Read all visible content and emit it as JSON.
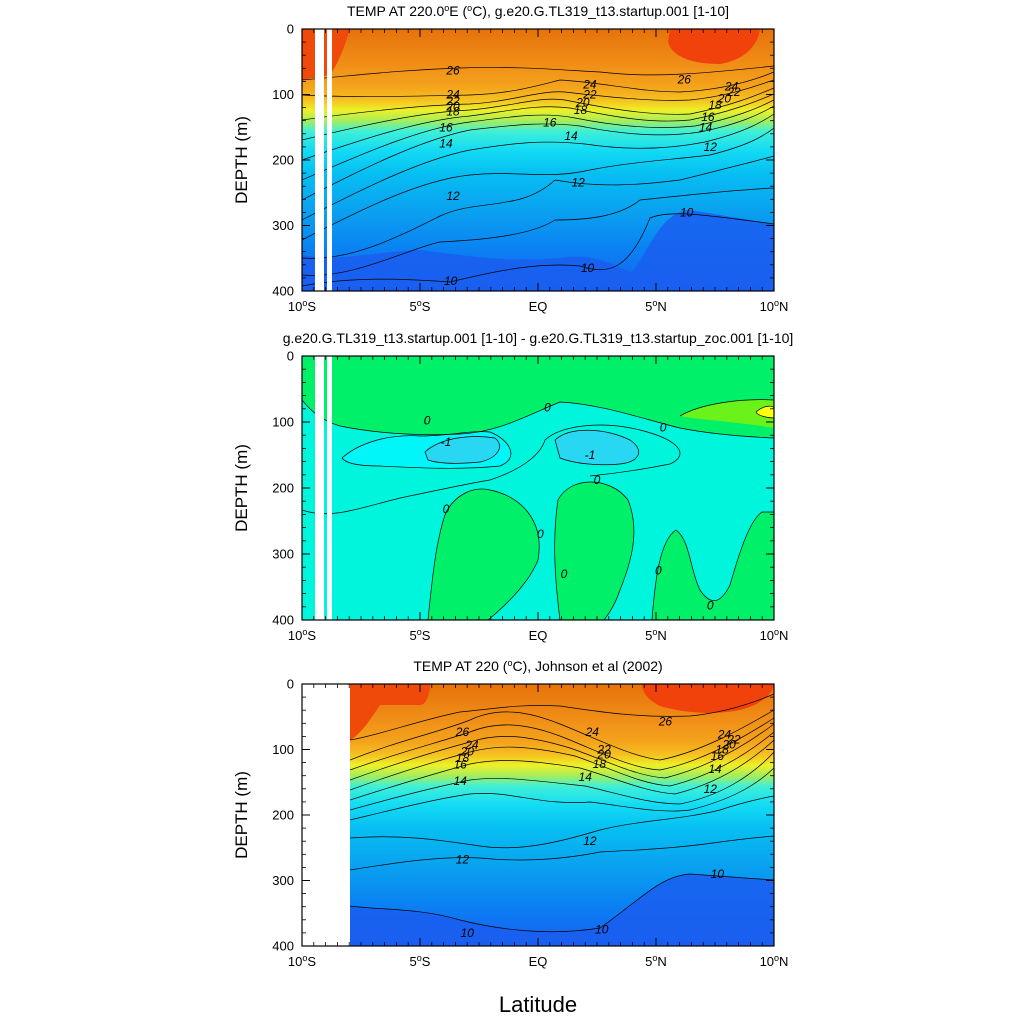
{
  "chart_data": [
    {
      "type": "contour",
      "title": "TEMP AT 220.0°E (°C), g.e20.G.TL319_t13.startup.001 [1-10]",
      "title_parts": {
        "pre": "TEMP AT 220.0",
        "sup1": "o",
        "mid": "E (",
        "sup2": "o",
        "post": "C), g.e20.G.TL319_t13.startup.001 [1-10]"
      },
      "ylabel": "DEPTH (m)",
      "xlabel": "",
      "xlim": [
        -10,
        10
      ],
      "ylim": [
        400,
        0
      ],
      "yticks": [
        0,
        100,
        200,
        300,
        400
      ],
      "xtick_values": [
        -10,
        -5,
        0,
        5,
        10
      ],
      "xtick_labels": [
        {
          "n": "10",
          "d": "S"
        },
        {
          "n": "5",
          "d": "S"
        },
        {
          "n": "EQ",
          "d": ""
        },
        {
          "n": "5",
          "d": "N"
        },
        {
          "n": "10",
          "d": "N"
        }
      ],
      "levels": [
        10,
        12,
        14,
        16,
        18,
        20,
        22,
        24,
        26
      ],
      "contour_labels": [
        {
          "text": "26",
          "lat": -3.6,
          "depth": 63
        },
        {
          "text": "24",
          "lat": -3.6,
          "depth": 100
        },
        {
          "text": "22",
          "lat": -3.6,
          "depth": 110
        },
        {
          "text": "20",
          "lat": -3.6,
          "depth": 118
        },
        {
          "text": "18",
          "lat": -3.6,
          "depth": 126
        },
        {
          "text": "16",
          "lat": -3.9,
          "depth": 150
        },
        {
          "text": "14",
          "lat": -3.9,
          "depth": 175
        },
        {
          "text": "12",
          "lat": -3.6,
          "depth": 255
        },
        {
          "text": "10",
          "lat": -3.7,
          "depth": 385
        },
        {
          "text": "24",
          "lat": 2.2,
          "depth": 85
        },
        {
          "text": "22",
          "lat": 2.2,
          "depth": 100
        },
        {
          "text": "20",
          "lat": 1.9,
          "depth": 112
        },
        {
          "text": "18",
          "lat": 1.8,
          "depth": 124
        },
        {
          "text": "16",
          "lat": 0.5,
          "depth": 143
        },
        {
          "text": "14",
          "lat": 1.4,
          "depth": 163
        },
        {
          "text": "12",
          "lat": 1.7,
          "depth": 234
        },
        {
          "text": "10",
          "lat": 2.1,
          "depth": 365
        },
        {
          "text": "26",
          "lat": 6.2,
          "depth": 77
        },
        {
          "text": "24",
          "lat": 8.2,
          "depth": 88
        },
        {
          "text": "22",
          "lat": 8.3,
          "depth": 96
        },
        {
          "text": "20",
          "lat": 7.9,
          "depth": 106
        },
        {
          "text": "18",
          "lat": 7.5,
          "depth": 116
        },
        {
          "text": "16",
          "lat": 7.2,
          "depth": 134
        },
        {
          "text": "14",
          "lat": 7.1,
          "depth": 150
        },
        {
          "text": "12",
          "lat": 7.3,
          "depth": 180
        },
        {
          "text": "10",
          "lat": 6.3,
          "depth": 280
        }
      ],
      "missing_strips": [
        [
          -9.6,
          -9.0
        ],
        [
          -8.9,
          -8.6
        ]
      ]
    },
    {
      "type": "contour",
      "title": "g.e20.G.TL319_t13.startup.001 [1-10] - g.e20.G.TL319_t13.startup_zoc.001 [1-10]",
      "ylabel": "DEPTH (m)",
      "xlabel": "",
      "xlim": [
        -10,
        10
      ],
      "ylim": [
        400,
        0
      ],
      "yticks": [
        0,
        100,
        200,
        300,
        400
      ],
      "xtick_values": [
        -10,
        -5,
        0,
        5,
        10
      ],
      "xtick_labels": [
        {
          "n": "10",
          "d": "S"
        },
        {
          "n": "5",
          "d": "S"
        },
        {
          "n": "EQ",
          "d": ""
        },
        {
          "n": "5",
          "d": "N"
        },
        {
          "n": "10",
          "d": "N"
        }
      ],
      "levels": [
        -1,
        0,
        1
      ],
      "contour_labels": [
        {
          "text": "0",
          "lat": -4.7,
          "depth": 98
        },
        {
          "text": "-1",
          "lat": -3.9,
          "depth": 130
        },
        {
          "text": "0",
          "lat": -3.9,
          "depth": 232
        },
        {
          "text": "0",
          "lat": 0.4,
          "depth": 78
        },
        {
          "text": "-1",
          "lat": 2.2,
          "depth": 150
        },
        {
          "text": "0",
          "lat": 2.5,
          "depth": 188
        },
        {
          "text": "0",
          "lat": 0.1,
          "depth": 270
        },
        {
          "text": "0",
          "lat": 1.1,
          "depth": 330
        },
        {
          "text": "0",
          "lat": 5.3,
          "depth": 108
        },
        {
          "text": "0",
          "lat": 5.1,
          "depth": 325
        },
        {
          "text": "0",
          "lat": 7.3,
          "depth": 378
        }
      ],
      "missing_strips": [
        [
          -9.6,
          -9.0
        ],
        [
          -8.9,
          -8.6
        ]
      ]
    },
    {
      "type": "contour",
      "title": "TEMP AT 220 (°C), Johnson et al (2002)",
      "title_parts": {
        "pre": "TEMP AT 220 (",
        "sup1": "o",
        "mid": "",
        "sup2": "",
        "post": "C), Johnson et al (2002)"
      },
      "ylabel": "DEPTH (m)",
      "xlabel": "Latitude",
      "xlim": [
        -10,
        10
      ],
      "ylim": [
        400,
        0
      ],
      "yticks": [
        0,
        100,
        200,
        300,
        400
      ],
      "xtick_values": [
        -10,
        -5,
        0,
        5,
        10
      ],
      "xtick_labels": [
        {
          "n": "10",
          "d": "S"
        },
        {
          "n": "5",
          "d": "S"
        },
        {
          "n": "EQ",
          "d": ""
        },
        {
          "n": "5",
          "d": "N"
        },
        {
          "n": "10",
          "d": "N"
        }
      ],
      "levels": [
        10,
        12,
        14,
        16,
        18,
        20,
        22,
        24,
        26
      ],
      "contour_labels": [
        {
          "text": "26",
          "lat": -3.2,
          "depth": 73
        },
        {
          "text": "24",
          "lat": -2.8,
          "depth": 93
        },
        {
          "text": "20",
          "lat": -3.0,
          "depth": 103
        },
        {
          "text": "18",
          "lat": -3.2,
          "depth": 113
        },
        {
          "text": "16",
          "lat": -3.3,
          "depth": 123
        },
        {
          "text": "14",
          "lat": -3.3,
          "depth": 148
        },
        {
          "text": "12",
          "lat": -3.2,
          "depth": 268
        },
        {
          "text": "10",
          "lat": -3.0,
          "depth": 380
        },
        {
          "text": "24",
          "lat": 2.3,
          "depth": 73
        },
        {
          "text": "22",
          "lat": 2.8,
          "depth": 100
        },
        {
          "text": "20",
          "lat": 2.8,
          "depth": 108
        },
        {
          "text": "18",
          "lat": 2.6,
          "depth": 122
        },
        {
          "text": "14",
          "lat": 2.0,
          "depth": 142
        },
        {
          "text": "12",
          "lat": 2.2,
          "depth": 240
        },
        {
          "text": "10",
          "lat": 2.7,
          "depth": 375
        },
        {
          "text": "26",
          "lat": 5.4,
          "depth": 57
        },
        {
          "text": "24",
          "lat": 7.9,
          "depth": 77
        },
        {
          "text": "22",
          "lat": 8.3,
          "depth": 85
        },
        {
          "text": "20",
          "lat": 8.1,
          "depth": 92
        },
        {
          "text": "18",
          "lat": 7.8,
          "depth": 100
        },
        {
          "text": "16",
          "lat": 7.6,
          "depth": 110
        },
        {
          "text": "14",
          "lat": 7.5,
          "depth": 130
        },
        {
          "text": "12",
          "lat": 7.3,
          "depth": 160
        },
        {
          "text": "10",
          "lat": 7.6,
          "depth": 290
        }
      ],
      "data_start_lat": -8
    }
  ],
  "colors": {
    "temperature_fill": [
      "#1e5cf0",
      "#0b7cf2",
      "#0a9cf0",
      "#06c2f2",
      "#1ce6f4",
      "#3ef8ea",
      "#a8f25a",
      "#e8f21e",
      "#f8c712",
      "#f6a418",
      "#ef8b16",
      "#e85a08",
      "#f0420a"
    ],
    "difference_fill": {
      "below_-1": "#28d7f2",
      "-1_to_0": "#00f6f8",
      "0_to_1": "#00f06a",
      "above_1": "#ffff10"
    }
  }
}
